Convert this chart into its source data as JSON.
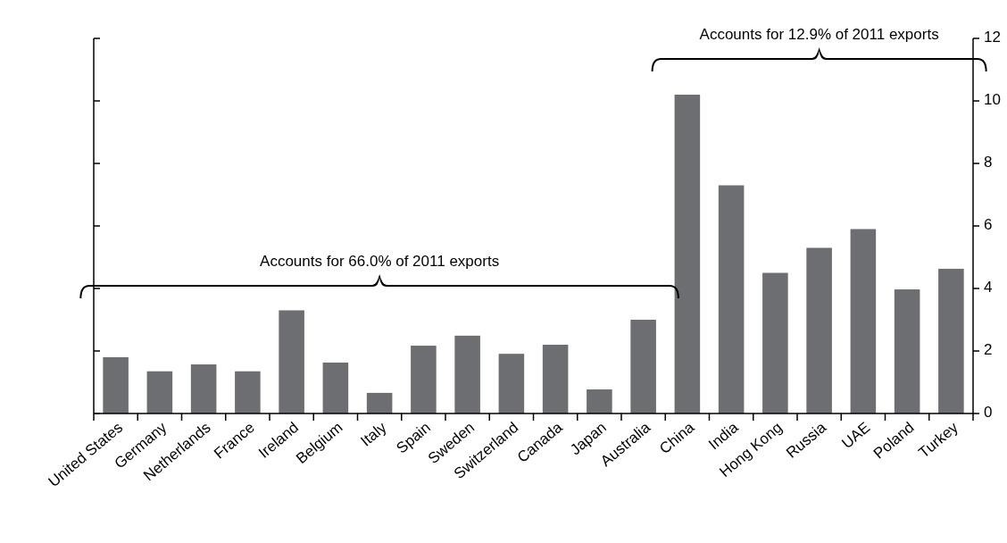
{
  "chart_data": {
    "type": "bar",
    "categories": [
      "United States",
      "Germany",
      "Netherlands",
      "France",
      "Ireland",
      "Belgium",
      "Italy",
      "Spain",
      "Sweden",
      "Switzerland",
      "Canada",
      "Japan",
      "Australia",
      "China",
      "India",
      "Hong Kong",
      "Russia",
      "UAE",
      "Poland",
      "Turkey"
    ],
    "values": [
      1.8,
      1.35,
      1.57,
      1.35,
      3.3,
      1.63,
      0.66,
      2.17,
      2.49,
      1.91,
      2.2,
      0.77,
      3.0,
      10.2,
      7.3,
      4.5,
      5.3,
      5.9,
      3.97,
      4.63
    ],
    "color": "#6d6e71",
    "ylim": [
      0,
      12
    ],
    "yticks": [
      0,
      2,
      4,
      6,
      8,
      10,
      12
    ],
    "grid": false,
    "annotations": [
      "Accounts for 66.0% of 2011 exports",
      "Accounts for 12.9% of 2011 exports"
    ]
  }
}
